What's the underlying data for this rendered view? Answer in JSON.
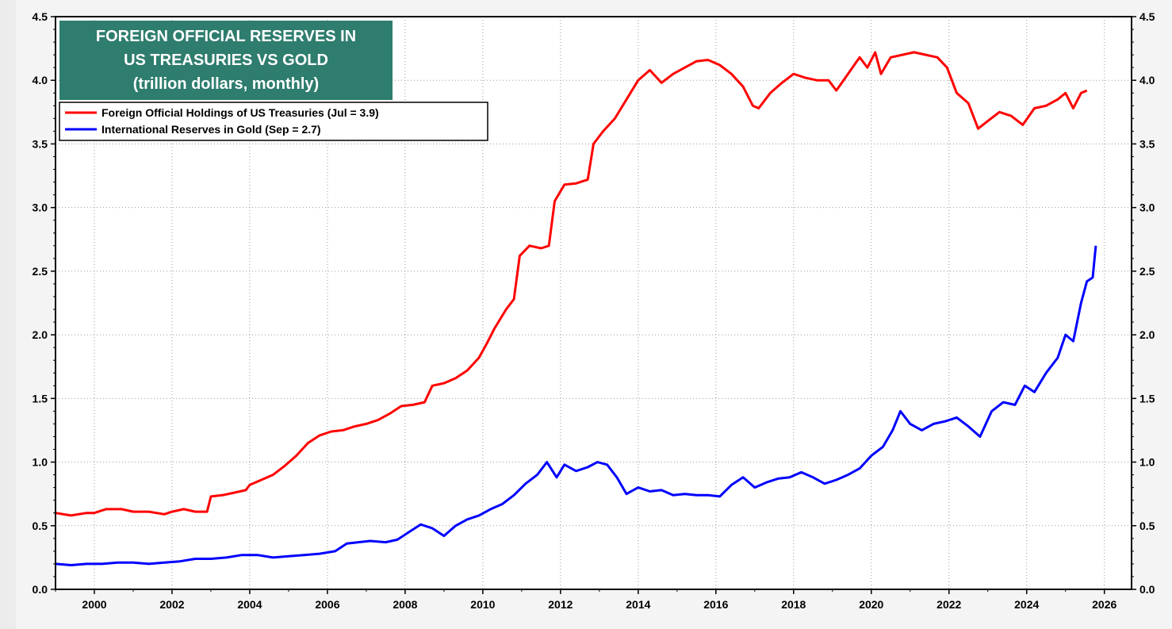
{
  "chart_data": {
    "type": "line",
    "title": [
      "FOREIGN OFFICIAL RESERVES IN",
      "US TREASURIES VS GOLD",
      "(trillion dollars, monthly)"
    ],
    "xlabel": "",
    "ylabel": "",
    "xlim": [
      1999.0,
      2026.7
    ],
    "ylim": [
      0.0,
      4.5
    ],
    "x_ticks": [
      2000,
      2002,
      2004,
      2006,
      2008,
      2010,
      2012,
      2014,
      2016,
      2018,
      2020,
      2022,
      2024,
      2026
    ],
    "y_ticks": [
      "0.0",
      "0.5",
      "1.0",
      "1.5",
      "2.0",
      "2.5",
      "3.0",
      "3.5",
      "4.0",
      "4.5"
    ],
    "grid": true,
    "legend_position": "top-left",
    "colors": {
      "title_bg": "#2e7d6e",
      "treasuries": "#ff0000",
      "gold": "#0000ff",
      "plot_bg": "#ffffff"
    },
    "series": [
      {
        "name": "Foreign Official Holdings of US Treasuries (Jul = 3.9)",
        "color": "#ff0000",
        "points": [
          [
            1999.0,
            0.6
          ],
          [
            1999.4,
            0.58
          ],
          [
            1999.8,
            0.6
          ],
          [
            2000.0,
            0.6
          ],
          [
            2000.3,
            0.63
          ],
          [
            2000.7,
            0.63
          ],
          [
            2001.0,
            0.61
          ],
          [
            2001.4,
            0.61
          ],
          [
            2001.8,
            0.59
          ],
          [
            2002.0,
            0.61
          ],
          [
            2002.3,
            0.63
          ],
          [
            2002.6,
            0.61
          ],
          [
            2002.9,
            0.61
          ],
          [
            2003.0,
            0.73
          ],
          [
            2003.3,
            0.74
          ],
          [
            2003.6,
            0.76
          ],
          [
            2003.9,
            0.78
          ],
          [
            2004.0,
            0.82
          ],
          [
            2004.3,
            0.86
          ],
          [
            2004.6,
            0.9
          ],
          [
            2004.9,
            0.97
          ],
          [
            2005.2,
            1.05
          ],
          [
            2005.5,
            1.15
          ],
          [
            2005.8,
            1.21
          ],
          [
            2006.1,
            1.24
          ],
          [
            2006.4,
            1.25
          ],
          [
            2006.7,
            1.28
          ],
          [
            2007.0,
            1.3
          ],
          [
            2007.3,
            1.33
          ],
          [
            2007.6,
            1.38
          ],
          [
            2007.9,
            1.44
          ],
          [
            2008.2,
            1.45
          ],
          [
            2008.5,
            1.47
          ],
          [
            2008.7,
            1.6
          ],
          [
            2009.0,
            1.62
          ],
          [
            2009.3,
            1.66
          ],
          [
            2009.6,
            1.72
          ],
          [
            2009.9,
            1.82
          ],
          [
            2010.1,
            1.93
          ],
          [
            2010.3,
            2.05
          ],
          [
            2010.6,
            2.2
          ],
          [
            2010.8,
            2.28
          ],
          [
            2010.95,
            2.62
          ],
          [
            2011.2,
            2.7
          ],
          [
            2011.5,
            2.68
          ],
          [
            2011.7,
            2.7
          ],
          [
            2011.85,
            3.05
          ],
          [
            2012.1,
            3.18
          ],
          [
            2012.4,
            3.19
          ],
          [
            2012.7,
            3.22
          ],
          [
            2012.85,
            3.5
          ],
          [
            2013.1,
            3.6
          ],
          [
            2013.4,
            3.7
          ],
          [
            2013.7,
            3.85
          ],
          [
            2014.0,
            4.0
          ],
          [
            2014.3,
            4.08
          ],
          [
            2014.6,
            3.98
          ],
          [
            2014.9,
            4.05
          ],
          [
            2015.2,
            4.1
          ],
          [
            2015.5,
            4.15
          ],
          [
            2015.8,
            4.16
          ],
          [
            2016.1,
            4.12
          ],
          [
            2016.4,
            4.05
          ],
          [
            2016.7,
            3.95
          ],
          [
            2016.95,
            3.8
          ],
          [
            2017.1,
            3.78
          ],
          [
            2017.4,
            3.9
          ],
          [
            2017.7,
            3.98
          ],
          [
            2018.0,
            4.05
          ],
          [
            2018.3,
            4.02
          ],
          [
            2018.6,
            4.0
          ],
          [
            2018.9,
            4.0
          ],
          [
            2019.1,
            3.92
          ],
          [
            2019.4,
            4.05
          ],
          [
            2019.7,
            4.18
          ],
          [
            2019.9,
            4.1
          ],
          [
            2020.1,
            4.22
          ],
          [
            2020.25,
            4.05
          ],
          [
            2020.5,
            4.18
          ],
          [
            2020.8,
            4.2
          ],
          [
            2021.1,
            4.22
          ],
          [
            2021.4,
            4.2
          ],
          [
            2021.7,
            4.18
          ],
          [
            2021.95,
            4.1
          ],
          [
            2022.2,
            3.9
          ],
          [
            2022.5,
            3.82
          ],
          [
            2022.75,
            3.62
          ],
          [
            2023.0,
            3.68
          ],
          [
            2023.3,
            3.75
          ],
          [
            2023.6,
            3.72
          ],
          [
            2023.9,
            3.65
          ],
          [
            2024.2,
            3.78
          ],
          [
            2024.5,
            3.8
          ],
          [
            2024.8,
            3.85
          ],
          [
            2025.0,
            3.9
          ],
          [
            2025.2,
            3.78
          ],
          [
            2025.4,
            3.9
          ],
          [
            2025.55,
            3.92
          ]
        ]
      },
      {
        "name": "International Reserves in Gold (Sep = 2.7)",
        "color": "#0000ff",
        "points": [
          [
            1999.0,
            0.2
          ],
          [
            1999.4,
            0.19
          ],
          [
            1999.8,
            0.2
          ],
          [
            2000.2,
            0.2
          ],
          [
            2000.6,
            0.21
          ],
          [
            2001.0,
            0.21
          ],
          [
            2001.4,
            0.2
          ],
          [
            2001.8,
            0.21
          ],
          [
            2002.2,
            0.22
          ],
          [
            2002.6,
            0.24
          ],
          [
            2003.0,
            0.24
          ],
          [
            2003.4,
            0.25
          ],
          [
            2003.8,
            0.27
          ],
          [
            2004.2,
            0.27
          ],
          [
            2004.6,
            0.25
          ],
          [
            2005.0,
            0.26
          ],
          [
            2005.4,
            0.27
          ],
          [
            2005.8,
            0.28
          ],
          [
            2006.2,
            0.3
          ],
          [
            2006.5,
            0.36
          ],
          [
            2006.8,
            0.37
          ],
          [
            2007.1,
            0.38
          ],
          [
            2007.5,
            0.37
          ],
          [
            2007.8,
            0.39
          ],
          [
            2008.1,
            0.45
          ],
          [
            2008.4,
            0.51
          ],
          [
            2008.7,
            0.48
          ],
          [
            2009.0,
            0.42
          ],
          [
            2009.3,
            0.5
          ],
          [
            2009.6,
            0.55
          ],
          [
            2009.9,
            0.58
          ],
          [
            2010.2,
            0.63
          ],
          [
            2010.5,
            0.67
          ],
          [
            2010.8,
            0.74
          ],
          [
            2011.1,
            0.83
          ],
          [
            2011.4,
            0.9
          ],
          [
            2011.65,
            1.0
          ],
          [
            2011.9,
            0.88
          ],
          [
            2012.1,
            0.98
          ],
          [
            2012.4,
            0.93
          ],
          [
            2012.7,
            0.96
          ],
          [
            2012.95,
            1.0
          ],
          [
            2013.2,
            0.98
          ],
          [
            2013.45,
            0.88
          ],
          [
            2013.7,
            0.75
          ],
          [
            2014.0,
            0.8
          ],
          [
            2014.3,
            0.77
          ],
          [
            2014.6,
            0.78
          ],
          [
            2014.9,
            0.74
          ],
          [
            2015.2,
            0.75
          ],
          [
            2015.5,
            0.74
          ],
          [
            2015.8,
            0.74
          ],
          [
            2016.1,
            0.73
          ],
          [
            2016.4,
            0.82
          ],
          [
            2016.7,
            0.88
          ],
          [
            2017.0,
            0.8
          ],
          [
            2017.3,
            0.84
          ],
          [
            2017.6,
            0.87
          ],
          [
            2017.9,
            0.88
          ],
          [
            2018.2,
            0.92
          ],
          [
            2018.5,
            0.88
          ],
          [
            2018.8,
            0.83
          ],
          [
            2019.1,
            0.86
          ],
          [
            2019.4,
            0.9
          ],
          [
            2019.7,
            0.95
          ],
          [
            2020.0,
            1.05
          ],
          [
            2020.3,
            1.12
          ],
          [
            2020.55,
            1.25
          ],
          [
            2020.75,
            1.4
          ],
          [
            2021.0,
            1.3
          ],
          [
            2021.3,
            1.25
          ],
          [
            2021.6,
            1.3
          ],
          [
            2021.9,
            1.32
          ],
          [
            2022.2,
            1.35
          ],
          [
            2022.5,
            1.28
          ],
          [
            2022.8,
            1.2
          ],
          [
            2023.1,
            1.4
          ],
          [
            2023.4,
            1.47
          ],
          [
            2023.7,
            1.45
          ],
          [
            2023.95,
            1.6
          ],
          [
            2024.2,
            1.55
          ],
          [
            2024.5,
            1.7
          ],
          [
            2024.8,
            1.82
          ],
          [
            2025.0,
            2.0
          ],
          [
            2025.2,
            1.95
          ],
          [
            2025.4,
            2.25
          ],
          [
            2025.55,
            2.42
          ],
          [
            2025.7,
            2.45
          ],
          [
            2025.78,
            2.7
          ]
        ]
      }
    ]
  }
}
